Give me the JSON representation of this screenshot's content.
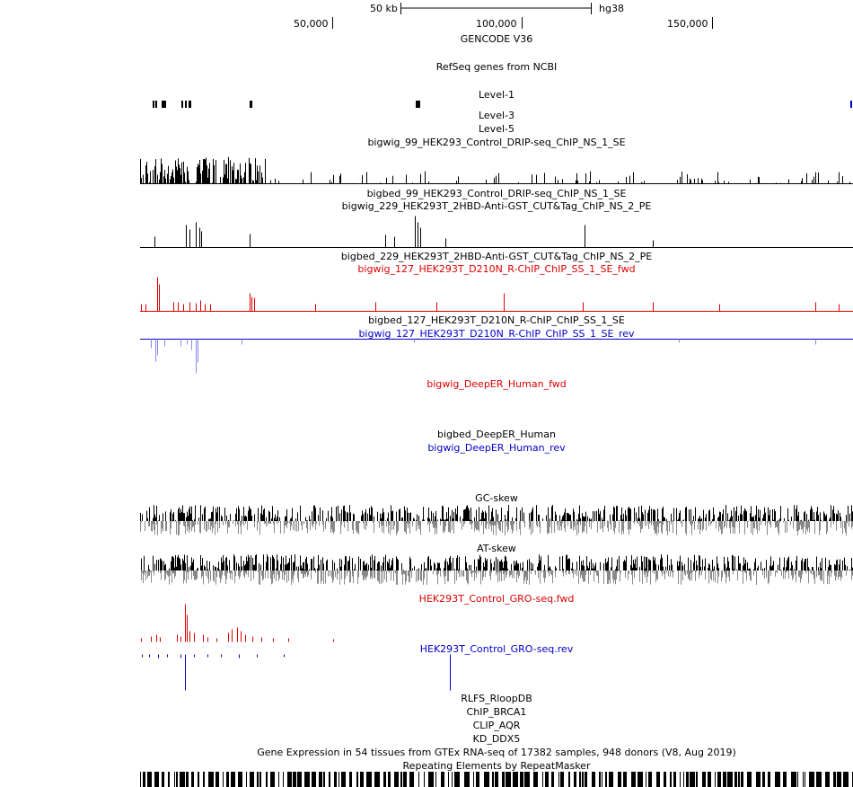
{
  "ruler": {
    "scale_label": "50 kb",
    "assembly": "hg38",
    "ticks": [
      "50,000",
      "100,000",
      "150,000"
    ]
  },
  "tracks": {
    "gencode": {
      "label": "GENCODE V36",
      "color": "#000000"
    },
    "refseq": {
      "label": "RefSeq genes from NCBI",
      "color": "#000000"
    },
    "level1": {
      "label": "Level-1",
      "color": "#000000"
    },
    "level3": {
      "label": "Level-3",
      "color": "#000000"
    },
    "level5": {
      "label": "Level-5",
      "color": "#000000"
    },
    "bw99": {
      "label": "bigwig_99_HEK293_Control_DRIP-seq_ChIP_NS_1_SE",
      "color": "#000000"
    },
    "bb99": {
      "label": "bigbed_99_HEK293_Control_DRIP-seq_ChIP_NS_1_SE",
      "color": "#000000"
    },
    "bw229": {
      "label": "bigwig_229_HEK293T_2HBD-Anti-GST_CUT&Tag_ChIP_NS_2_PE",
      "color": "#000000"
    },
    "bb229": {
      "label": "bigbed_229_HEK293T_2HBD-Anti-GST_CUT&Tag_ChIP_NS_2_PE",
      "color": "#000000"
    },
    "bw127fwd": {
      "label": "bigwig_127_HEK293T_D210N_R-ChIP_ChIP_SS_1_SE_fwd",
      "color": "#dd0000"
    },
    "bb127": {
      "label": "bigbed_127_HEK293T_D210N_R-ChIP_ChIP_SS_1_SE",
      "color": "#000000"
    },
    "bw127rev": {
      "label": "bigwig_127_HEK293T_D210N_R-ChIP_ChIP_SS_1_SE_rev",
      "color": "#0000cc"
    },
    "deeperfwd": {
      "label": "bigwig_DeepER_Human_fwd",
      "color": "#dd0000"
    },
    "deeperbb": {
      "label": "bigbed_DeepER_Human",
      "color": "#000000"
    },
    "deeperrev": {
      "label": "bigwig_DeepER_Human_rev",
      "color": "#0000cc"
    },
    "gcskew": {
      "label": "GC-skew",
      "color": "#000000"
    },
    "atskew": {
      "label": "AT-skew",
      "color": "#000000"
    },
    "grofwd": {
      "label": "HEK293T_Control_GRO-seq.fwd",
      "color": "#dd0000"
    },
    "grorev": {
      "label": "HEK293T_Control_GRO-seq.rev",
      "color": "#0000cc"
    },
    "rlfs": {
      "label": "RLFS_RloopDB",
      "color": "#000000"
    },
    "brca1": {
      "label": "ChIP_BRCA1",
      "color": "#000000"
    },
    "aqr": {
      "label": "CLIP_AQR",
      "color": "#000000"
    },
    "ddx5": {
      "label": "KD_DDX5",
      "color": "#000000"
    },
    "gtex": {
      "label": "Gene Expression in 54 tissues from GTEx RNA-seq of 17382 samples, 948 donors (V8, Aug 2019)",
      "color": "#000000"
    },
    "rmsk": {
      "label": "Repeating Elements by RepeatMasker",
      "color": "#000000"
    }
  }
}
